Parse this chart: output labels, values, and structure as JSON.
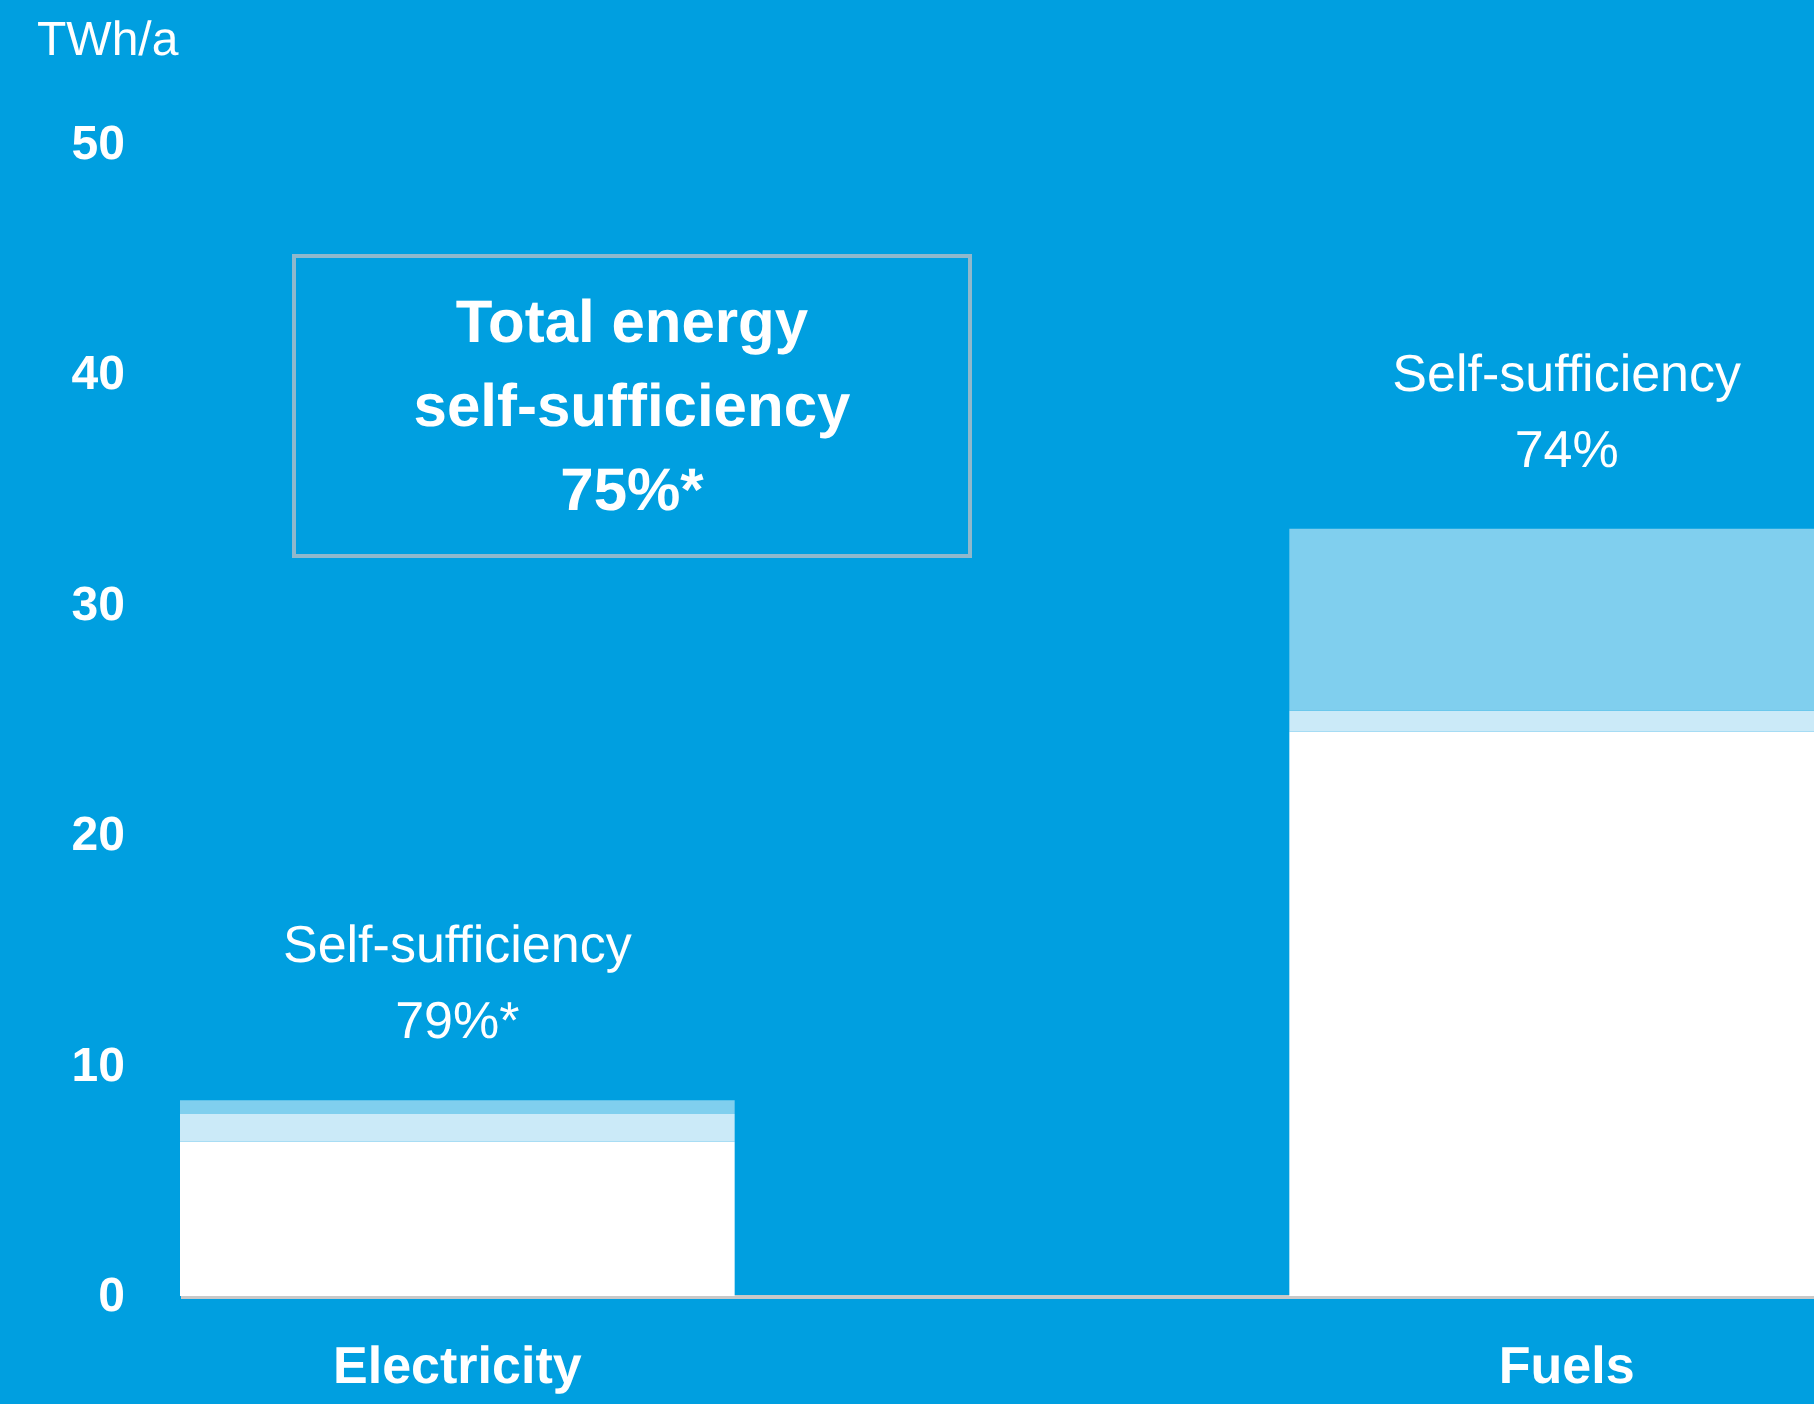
{
  "chart_data": {
    "type": "bar",
    "stacked": true,
    "ylabel": "TWh/a",
    "categories": [
      "Electricity",
      "Fuels"
    ],
    "series": [
      {
        "color": "#ffffff",
        "values": [
          6.7,
          24.5
        ]
      },
      {
        "color": "#cbeaf8",
        "values": [
          1.2,
          0.9
        ]
      },
      {
        "color": "#80cfee",
        "values": [
          0.6,
          7.9
        ]
      }
    ],
    "ylim": [
      0,
      50
    ],
    "yticks": [
      0,
      10,
      20,
      30,
      40,
      50
    ],
    "legend": false,
    "annotations": [
      "Total energy\nself-sufficiency\n75%*",
      {
        "text": "Self-sufficiency\n79%*",
        "x": "Electricity",
        "y": 8.5
      },
      {
        "text": "Self-sufficiency\n74%",
        "x": "Fuels",
        "y": 33.3
      }
    ]
  }
}
